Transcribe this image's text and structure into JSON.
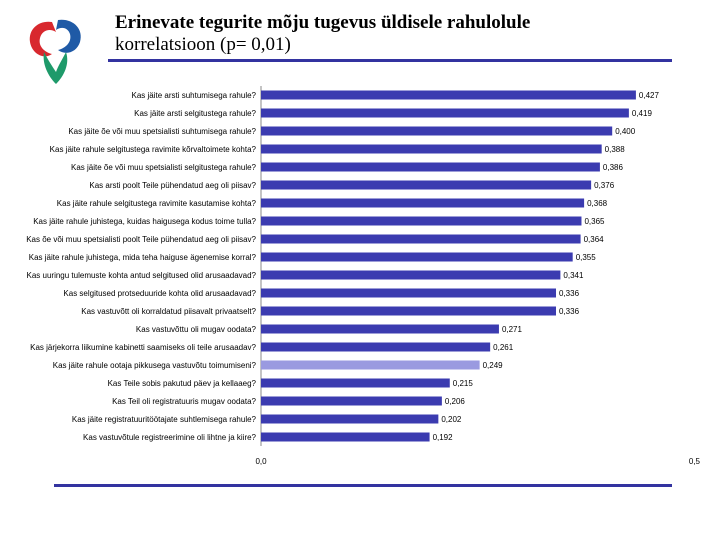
{
  "title": {
    "line1": "Erinevate tegurite mõju tugevus üldisele  rahulolule",
    "line2": "korrelatsioon (p= 0,01)"
  },
  "colors": {
    "bar": "#3b3bb0",
    "bar_highlight": "#9a9ae0",
    "rule": "#3333a0",
    "logo_red": "#d8282e",
    "logo_blue": "#1f5aa6",
    "logo_green": "#1e9a6a"
  },
  "chart_data": {
    "type": "bar",
    "orientation": "horizontal",
    "xlim": [
      0,
      0.5
    ],
    "ticks": [
      "0,0",
      "0,5"
    ],
    "grid": false,
    "categories": [
      "Kas jäite arsti suhtumisega rahule?",
      "Kas jäite arsti selgitustega rahule?",
      "Kas jäite õe või muu spetsialisti suhtumisega rahule?",
      "Kas jäite rahule selgitustega ravimite kõrvaltoimete kohta?",
      "Kas jäite õe või muu spetsialisti selgitustega rahule?",
      "Kas arsti poolt Teile pühendatud aeg oli piisav?",
      "Kas jäite rahule selgitustega ravimite kasutamise kohta?",
      "Kas jäite rahule juhistega, kuidas haigusega kodus toime tulla?",
      "Kas õe või muu spetsialisti poolt Teile pühendatud aeg oli piisav?",
      "Kas jäite rahule juhistega, mida teha haiguse ägenemise korral?",
      "Kas uuringu tulemuste kohta antud selgitused olid arusaadavad?",
      "Kas selgitused protseduuride kohta olid arusaadavad?",
      "Kas vastuvõtt oli korraldatud piisavalt privaatselt?",
      "Kas vastuvõttu oli mugav oodata?",
      "Kas järjekorra liikumine kabinetti saamiseks oli teile arusaadav?",
      "Kas jäite rahule ootaja pikkusega vastuvõtu toimumiseni?",
      "Kas Teile sobis pakutud päev ja kellaaeg?",
      "Kas Teil oli registratuuris mugav oodata?",
      "Kas jäite registratuuritöötajate suhtlemisega rahule?",
      "Kas vastuvõtule registreerimine oli lihtne ja kiire?"
    ],
    "values": [
      0.427,
      0.419,
      0.4,
      0.388,
      0.386,
      0.376,
      0.368,
      0.365,
      0.364,
      0.355,
      0.341,
      0.336,
      0.336,
      0.271,
      0.261,
      0.249,
      0.215,
      0.206,
      0.202,
      0.192
    ],
    "value_labels": [
      "0,427",
      "0,419",
      "0,400",
      "0,388",
      "0,386",
      "0,376",
      "0,368",
      "0,365",
      "0,364",
      "0,355",
      "0,341",
      "0,336",
      "0,336",
      "0,271",
      "0,261",
      "0,249",
      "0,215",
      "0,206",
      "0,202",
      "0,192"
    ],
    "highlight_index": 15
  }
}
